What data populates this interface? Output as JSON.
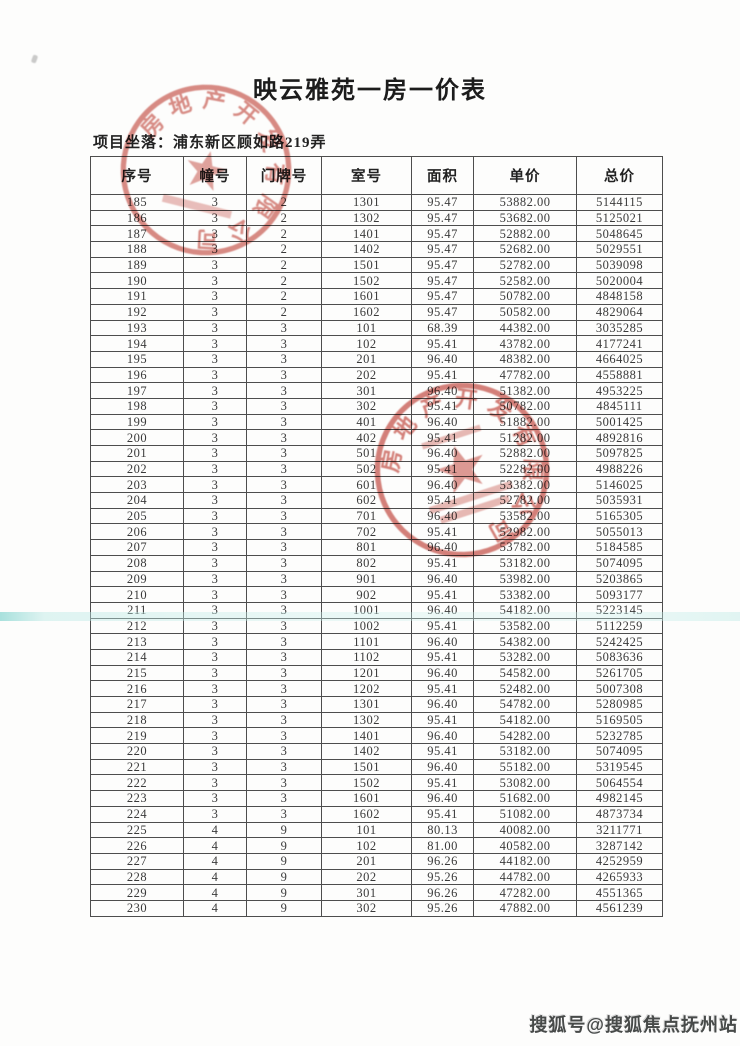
{
  "page": {
    "title": "映云雅苑一房一价表",
    "location_label": "项目坐落：",
    "location_value": "浦东新区顾如路219弄",
    "watermark": "搜狐号@搜狐焦点抚州站"
  },
  "table": {
    "headers": [
      "序号",
      "幢号",
      "门牌号",
      "室号",
      "面积",
      "单价",
      "总价"
    ],
    "rows": [
      [
        "185",
        "3",
        "2",
        "1301",
        "95.47",
        "53882.00",
        "5144115"
      ],
      [
        "186",
        "3",
        "2",
        "1302",
        "95.47",
        "53682.00",
        "5125021"
      ],
      [
        "187",
        "3",
        "2",
        "1401",
        "95.47",
        "52882.00",
        "5048645"
      ],
      [
        "188",
        "3",
        "2",
        "1402",
        "95.47",
        "52682.00",
        "5029551"
      ],
      [
        "189",
        "3",
        "2",
        "1501",
        "95.47",
        "52782.00",
        "5039098"
      ],
      [
        "190",
        "3",
        "2",
        "1502",
        "95.47",
        "52582.00",
        "5020004"
      ],
      [
        "191",
        "3",
        "2",
        "1601",
        "95.47",
        "50782.00",
        "4848158"
      ],
      [
        "192",
        "3",
        "2",
        "1602",
        "95.47",
        "50582.00",
        "4829064"
      ],
      [
        "193",
        "3",
        "3",
        "101",
        "68.39",
        "44382.00",
        "3035285"
      ],
      [
        "194",
        "3",
        "3",
        "102",
        "95.41",
        "43782.00",
        "4177241"
      ],
      [
        "195",
        "3",
        "3",
        "201",
        "96.40",
        "48382.00",
        "4664025"
      ],
      [
        "196",
        "3",
        "3",
        "202",
        "95.41",
        "47782.00",
        "4558881"
      ],
      [
        "197",
        "3",
        "3",
        "301",
        "96.40",
        "51382.00",
        "4953225"
      ],
      [
        "198",
        "3",
        "3",
        "302",
        "95.41",
        "50782.00",
        "4845111"
      ],
      [
        "199",
        "3",
        "3",
        "401",
        "96.40",
        "51882.00",
        "5001425"
      ],
      [
        "200",
        "3",
        "3",
        "402",
        "95.41",
        "51282.00",
        "4892816"
      ],
      [
        "201",
        "3",
        "3",
        "501",
        "96.40",
        "52882.00",
        "5097825"
      ],
      [
        "202",
        "3",
        "3",
        "502",
        "95.41",
        "52282.00",
        "4988226"
      ],
      [
        "203",
        "3",
        "3",
        "601",
        "96.40",
        "53382.00",
        "5146025"
      ],
      [
        "204",
        "3",
        "3",
        "602",
        "95.41",
        "52782.00",
        "5035931"
      ],
      [
        "205",
        "3",
        "3",
        "701",
        "96.40",
        "53582.00",
        "5165305"
      ],
      [
        "206",
        "3",
        "3",
        "702",
        "95.41",
        "52982.00",
        "5055013"
      ],
      [
        "207",
        "3",
        "3",
        "801",
        "96.40",
        "53782.00",
        "5184585"
      ],
      [
        "208",
        "3",
        "3",
        "802",
        "95.41",
        "53182.00",
        "5074095"
      ],
      [
        "209",
        "3",
        "3",
        "901",
        "96.40",
        "53982.00",
        "5203865"
      ],
      [
        "210",
        "3",
        "3",
        "902",
        "95.41",
        "53382.00",
        "5093177"
      ],
      [
        "211",
        "3",
        "3",
        "1001",
        "96.40",
        "54182.00",
        "5223145"
      ],
      [
        "212",
        "3",
        "3",
        "1002",
        "95.41",
        "53582.00",
        "5112259"
      ],
      [
        "213",
        "3",
        "3",
        "1101",
        "96.40",
        "54382.00",
        "5242425"
      ],
      [
        "214",
        "3",
        "3",
        "1102",
        "95.41",
        "53282.00",
        "5083636"
      ],
      [
        "215",
        "3",
        "3",
        "1201",
        "96.40",
        "54582.00",
        "5261705"
      ],
      [
        "216",
        "3",
        "3",
        "1202",
        "95.41",
        "52482.00",
        "5007308"
      ],
      [
        "217",
        "3",
        "3",
        "1301",
        "96.40",
        "54782.00",
        "5280985"
      ],
      [
        "218",
        "3",
        "3",
        "1302",
        "95.41",
        "54182.00",
        "5169505"
      ],
      [
        "219",
        "3",
        "3",
        "1401",
        "96.40",
        "54282.00",
        "5232785"
      ],
      [
        "220",
        "3",
        "3",
        "1402",
        "95.41",
        "53182.00",
        "5074095"
      ],
      [
        "221",
        "3",
        "3",
        "1501",
        "96.40",
        "55182.00",
        "5319545"
      ],
      [
        "222",
        "3",
        "3",
        "1502",
        "95.41",
        "53082.00",
        "5064554"
      ],
      [
        "223",
        "3",
        "3",
        "1601",
        "96.40",
        "51682.00",
        "4982145"
      ],
      [
        "224",
        "3",
        "3",
        "1602",
        "95.41",
        "51082.00",
        "4873734"
      ],
      [
        "225",
        "4",
        "9",
        "101",
        "80.13",
        "40082.00",
        "3211771"
      ],
      [
        "226",
        "4",
        "9",
        "102",
        "81.00",
        "40582.00",
        "3287142"
      ],
      [
        "227",
        "4",
        "9",
        "201",
        "96.26",
        "44182.00",
        "4252959"
      ],
      [
        "228",
        "4",
        "9",
        "202",
        "95.26",
        "44782.00",
        "4265933"
      ],
      [
        "229",
        "4",
        "9",
        "301",
        "96.26",
        "47282.00",
        "4551365"
      ],
      [
        "230",
        "4",
        "9",
        "302",
        "95.26",
        "47882.00",
        "4561239"
      ]
    ]
  },
  "stamps": {
    "arc_text": "房地产开发有限公司",
    "seal_color": "#c1443a"
  }
}
